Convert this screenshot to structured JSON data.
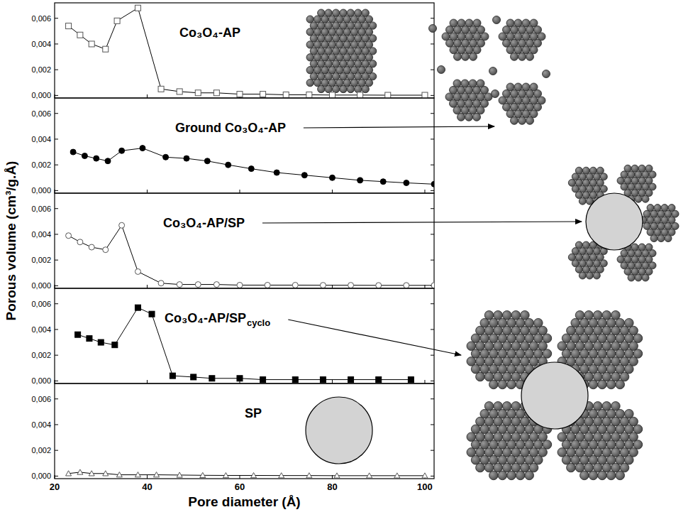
{
  "ylabel": "Porous volume (cm³/g.Å)",
  "chart_data": [
    {
      "type": "line",
      "title": "Co₃O₄-AP",
      "marker": "square-open",
      "color": "#000000",
      "x": [
        23,
        25.5,
        28,
        31,
        33.5,
        38,
        43,
        47,
        51,
        55,
        60,
        65,
        70,
        75,
        80,
        86,
        92,
        100
      ],
      "values": [
        0.0054,
        0.0047,
        0.004,
        0.0036,
        0.0058,
        0.0068,
        0.0005,
        0.0003,
        0.0002,
        0.0002,
        0.0001,
        0.0001,
        5e-05,
        5e-05,
        3e-05,
        3e-05,
        2e-05,
        2e-05
      ],
      "xlim": [
        20,
        102
      ],
      "ylim": [
        -0.0002,
        0.0072
      ],
      "xticks": [
        20,
        40,
        60,
        80,
        100
      ],
      "yticks": [
        {
          "value": 0,
          "label": "0,000"
        },
        {
          "value": 0.002,
          "label": "0,002"
        },
        {
          "value": 0.004,
          "label": "0,004"
        },
        {
          "value": 0.006,
          "label": "0,006"
        }
      ],
      "tick_labels": "y"
    },
    {
      "type": "line",
      "title": "Ground Co₃O₄-AP",
      "marker": "circle-filled",
      "color": "#000000",
      "x": [
        24,
        26.5,
        29,
        31.5,
        34.5,
        39,
        44,
        48.5,
        53,
        57.5,
        62.5,
        68,
        74,
        80,
        86,
        91,
        96,
        102
      ],
      "values": [
        0.003,
        0.0027,
        0.0025,
        0.0023,
        0.0031,
        0.0033,
        0.0026,
        0.0025,
        0.0023,
        0.002,
        0.0017,
        0.0014,
        0.0012,
        0.001,
        0.0008,
        0.0007,
        0.0006,
        0.0005
      ],
      "xlim": [
        20,
        102
      ],
      "ylim": [
        -0.0002,
        0.0072
      ],
      "xticks": [
        20,
        40,
        60,
        80,
        100
      ],
      "yticks": [
        {
          "value": 0,
          "label": "0,000"
        },
        {
          "value": 0.002,
          "label": "0,002"
        },
        {
          "value": 0.004,
          "label": "0,004"
        },
        {
          "value": 0.006,
          "label": "0,006"
        }
      ],
      "tick_labels": "y"
    },
    {
      "type": "line",
      "title": "Co₃O₄-AP/SP",
      "marker": "circle-open",
      "color": "#000000",
      "x": [
        23,
        25.5,
        28,
        31,
        34.5,
        38,
        43,
        47,
        51,
        55,
        60,
        66,
        72,
        78,
        84,
        90,
        96,
        102
      ],
      "values": [
        0.0039,
        0.0034,
        0.003,
        0.0028,
        0.0047,
        0.0011,
        0.0002,
        0.0001,
        0.0001,
        0.0001,
        5e-05,
        5e-05,
        5e-05,
        4e-05,
        4e-05,
        3e-05,
        3e-05,
        3e-05
      ],
      "xlim": [
        20,
        102
      ],
      "ylim": [
        -0.0002,
        0.0072
      ],
      "xticks": [
        20,
        40,
        60,
        80,
        100
      ],
      "yticks": [
        {
          "value": 0,
          "label": "0,000"
        },
        {
          "value": 0.002,
          "label": "0,002"
        },
        {
          "value": 0.004,
          "label": "0,004"
        },
        {
          "value": 0.006,
          "label": "0,006"
        }
      ],
      "tick_labels": "y"
    },
    {
      "type": "line",
      "title": "Co₃O₄-AP/SP",
      "title_subscript": "cyclo",
      "marker": "square-filled",
      "color": "#000000",
      "x": [
        25,
        27.5,
        30,
        33,
        38,
        41,
        45.5,
        50,
        54,
        60,
        65,
        72,
        78,
        84,
        90,
        97
      ],
      "values": [
        0.0036,
        0.0033,
        0.003,
        0.0028,
        0.0057,
        0.0052,
        0.0004,
        0.0003,
        0.0002,
        0.0002,
        0.0001,
        0.0001,
        0.0001,
        0.0001,
        0.0001,
        0.0001
      ],
      "xlim": [
        20,
        102
      ],
      "ylim": [
        -0.0002,
        0.0072
      ],
      "xticks": [
        20,
        40,
        60,
        80,
        100
      ],
      "yticks": [
        {
          "value": 0,
          "label": "0,000"
        },
        {
          "value": 0.002,
          "label": "0,002"
        },
        {
          "value": 0.004,
          "label": "0,004"
        },
        {
          "value": 0.006,
          "label": "0,006"
        }
      ],
      "tick_labels": "y"
    },
    {
      "type": "line",
      "title": "SP",
      "marker": "triangle-open",
      "color": "#000000",
      "x": [
        23,
        25.5,
        28,
        31,
        34,
        38,
        42,
        47,
        52,
        57,
        63,
        69,
        75,
        81,
        88,
        94,
        100
      ],
      "values": [
        0.0002,
        0.0003,
        0.0002,
        0.0002,
        0.0001,
        0.0001,
        0.0001,
        8e-05,
        6e-05,
        5e-05,
        5e-05,
        4e-05,
        4e-05,
        3e-05,
        3e-05,
        3e-05,
        3e-05
      ],
      "xlim": [
        20,
        102
      ],
      "ylim": [
        -0.0002,
        0.0072
      ],
      "xticks": [
        20,
        40,
        60,
        80,
        100
      ],
      "yticks": [
        {
          "value": 0,
          "label": "0,000"
        },
        {
          "value": 0.002,
          "label": "0,002"
        },
        {
          "value": 0.004,
          "label": "0,004"
        },
        {
          "value": 0.006,
          "label": "0,006"
        }
      ],
      "xlabel": "Pore diameter (Å)"
    }
  ]
}
